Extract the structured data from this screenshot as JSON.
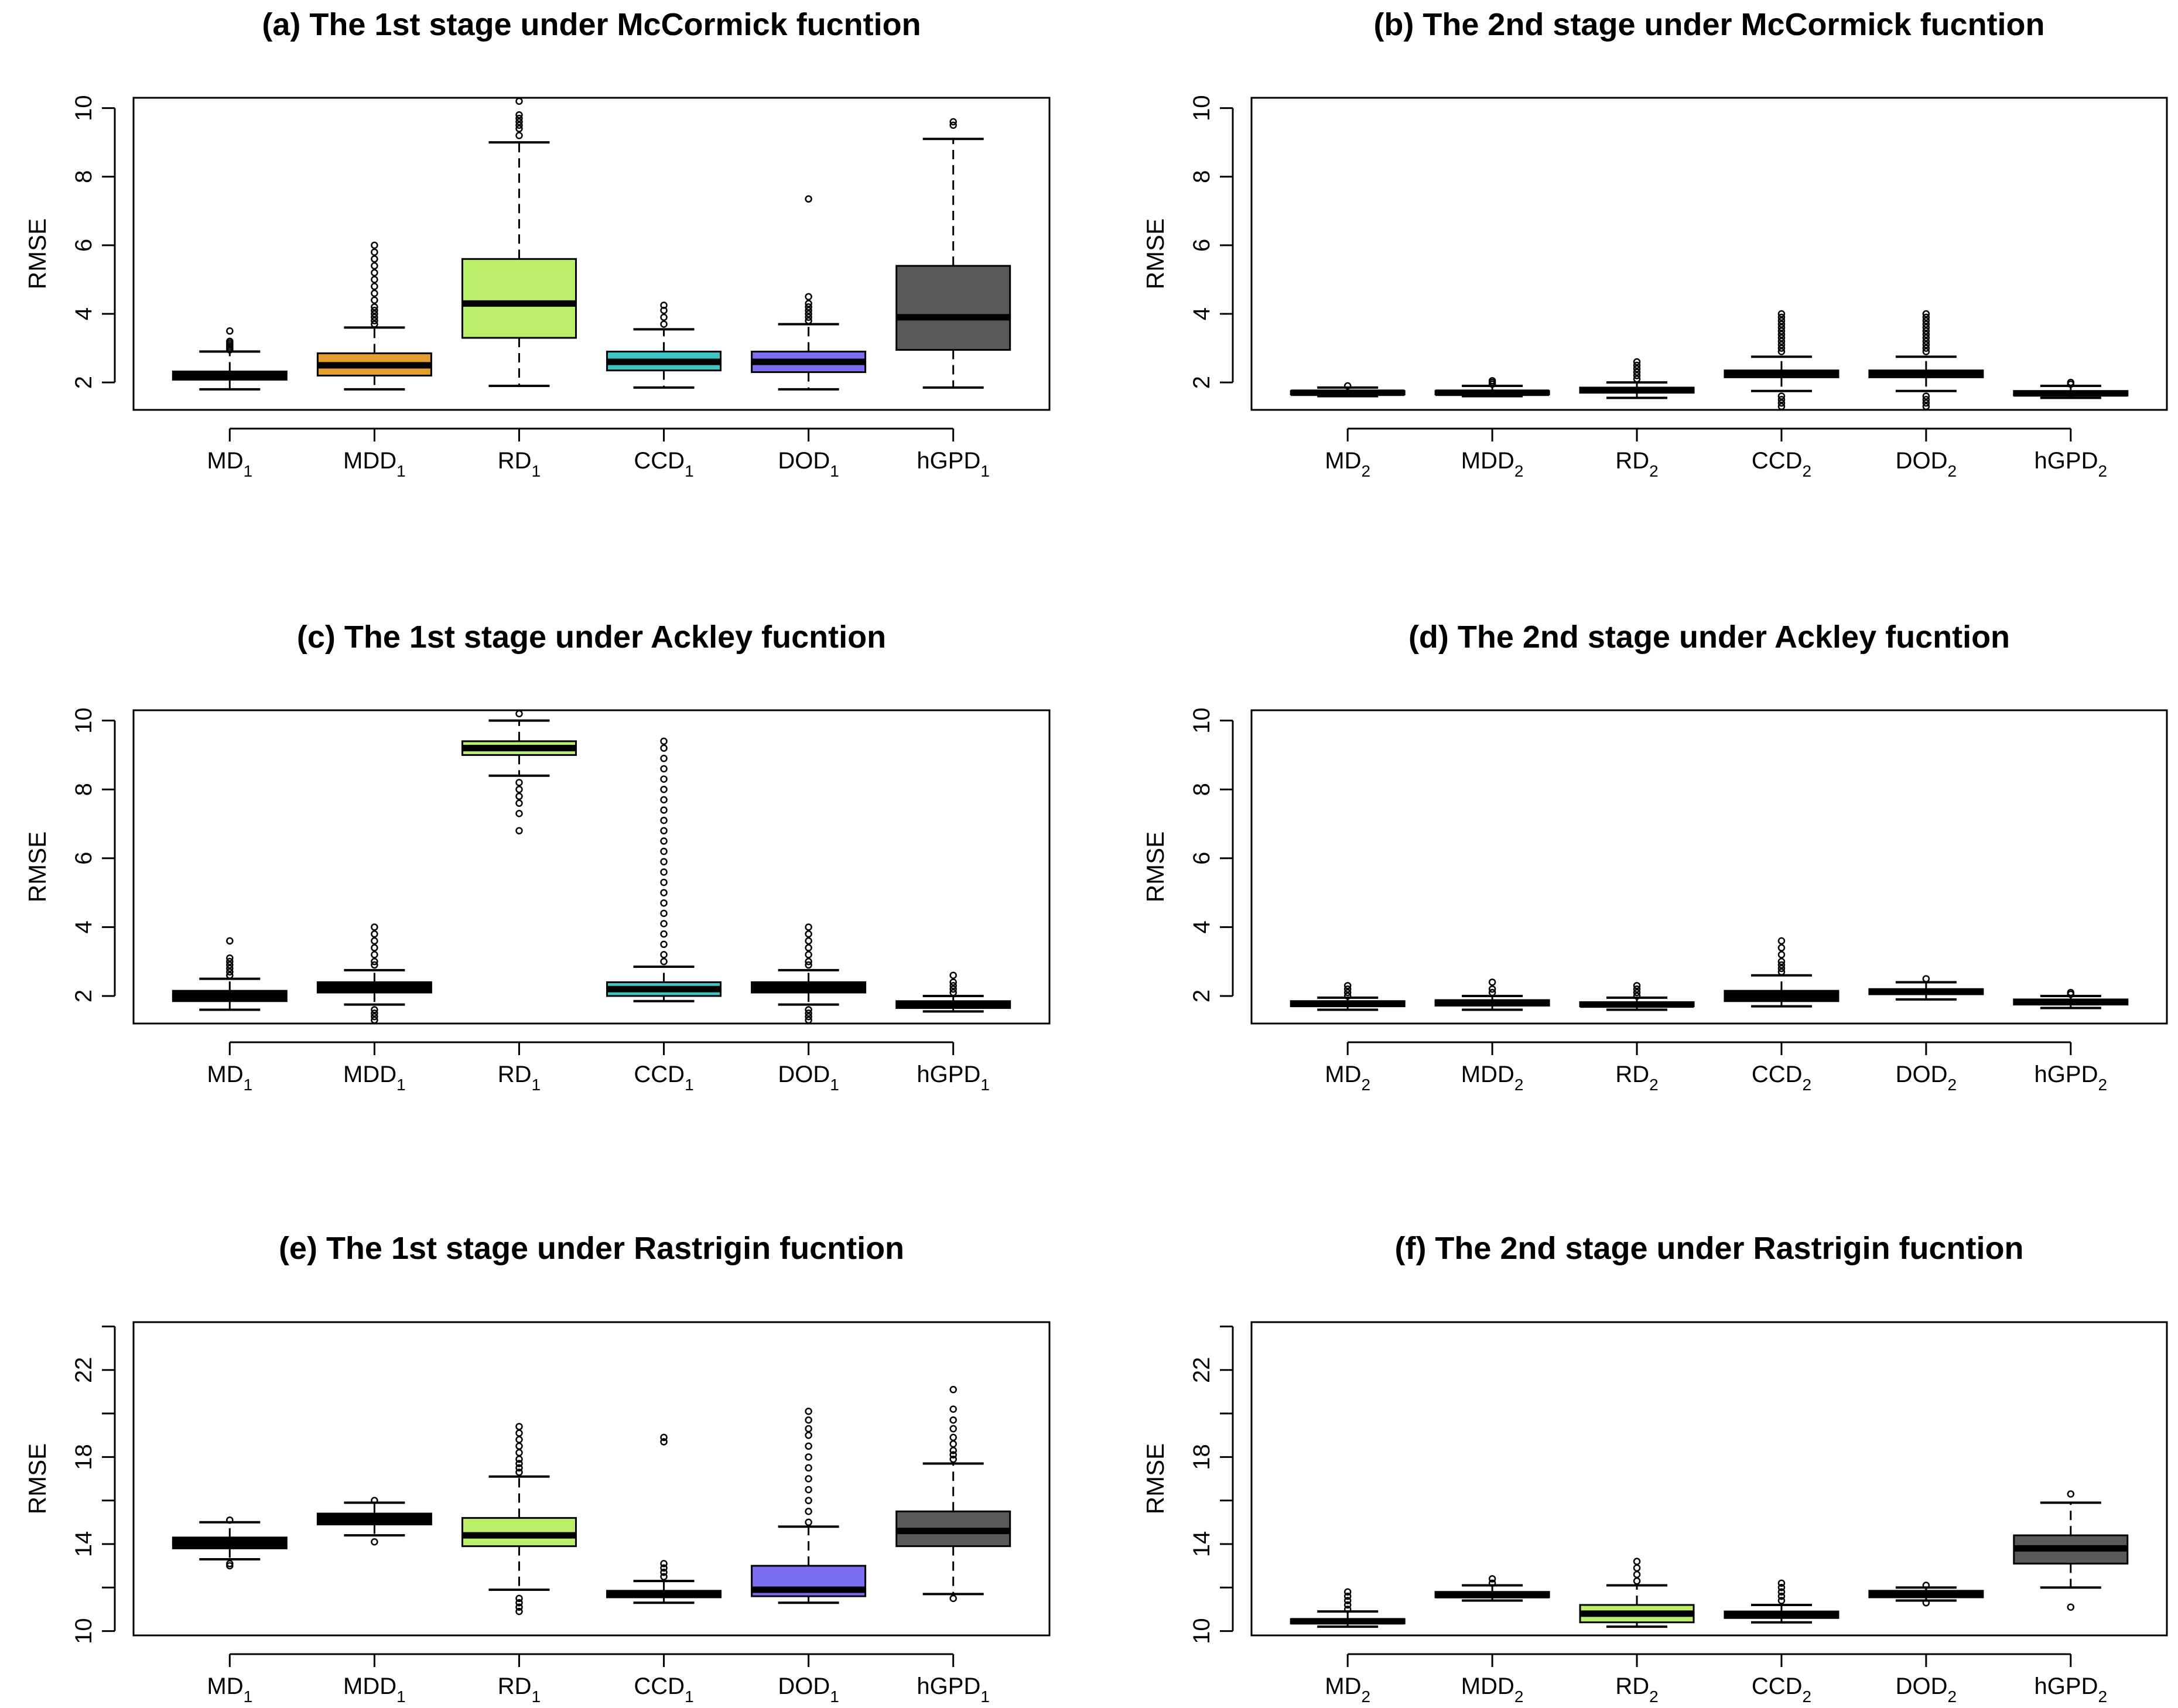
{
  "chart_data": [
    {
      "type": "box",
      "title": "(a) The 1st stage under McCormick fucntion",
      "ylabel": "RMSE",
      "ylim": [
        1.2,
        10.3
      ],
      "yticks": [
        2,
        4,
        6,
        8,
        10
      ],
      "series": [
        {
          "name": "MD",
          "sub": "1",
          "color": "#000000",
          "min": 1.8,
          "q1": 2.08,
          "median": 2.2,
          "q3": 2.32,
          "max": 2.9,
          "outliers": [
            2.95,
            3.0,
            3.05,
            3.1,
            3.15,
            3.2,
            3.5
          ]
        },
        {
          "name": "MDD",
          "sub": "1",
          "color": "#E69F2F",
          "min": 1.8,
          "q1": 2.2,
          "median": 2.5,
          "q3": 2.85,
          "max": 3.6,
          "outliers": [
            3.7,
            3.8,
            3.9,
            4.0,
            4.1,
            4.2,
            4.4,
            4.6,
            4.8,
            5.0,
            5.2,
            5.4,
            5.6,
            5.8,
            6.0
          ]
        },
        {
          "name": "RD",
          "sub": "1",
          "color": "#BDF06A",
          "min": 1.9,
          "q1": 3.3,
          "median": 4.3,
          "q3": 5.6,
          "max": 9.0,
          "outliers": [
            9.2,
            9.4,
            9.5,
            9.6,
            9.7,
            9.8,
            10.2
          ]
        },
        {
          "name": "CCD",
          "sub": "1",
          "color": "#3EC6C6",
          "min": 1.85,
          "q1": 2.35,
          "median": 2.6,
          "q3": 2.9,
          "max": 3.55,
          "outliers": [
            3.7,
            3.9,
            4.1,
            4.25
          ]
        },
        {
          "name": "DOD",
          "sub": "1",
          "color": "#7B6EF0",
          "min": 1.8,
          "q1": 2.3,
          "median": 2.6,
          "q3": 2.9,
          "max": 3.7,
          "outliers": [
            3.8,
            3.9,
            4.0,
            4.1,
            4.2,
            4.3,
            4.5,
            7.35
          ]
        },
        {
          "name": "hGPD",
          "sub": "1",
          "color": "#595959",
          "min": 1.85,
          "q1": 2.95,
          "median": 3.9,
          "q3": 5.4,
          "max": 9.1,
          "outliers": [
            9.5,
            9.6
          ]
        }
      ]
    },
    {
      "type": "box",
      "title": "(b) The 2nd stage under McCormick fucntion",
      "ylabel": "RMSE",
      "ylim": [
        1.2,
        10.3
      ],
      "yticks": [
        2,
        4,
        6,
        8,
        10
      ],
      "series": [
        {
          "name": "MD",
          "sub": "2",
          "color": "#000000",
          "min": 1.6,
          "q1": 1.65,
          "median": 1.7,
          "q3": 1.75,
          "max": 1.85,
          "outliers": [
            1.9
          ]
        },
        {
          "name": "MDD",
          "sub": "2",
          "color": "#000000",
          "min": 1.6,
          "q1": 1.65,
          "median": 1.7,
          "q3": 1.75,
          "max": 1.9,
          "outliers": [
            1.95,
            2.0,
            2.05
          ]
        },
        {
          "name": "RD",
          "sub": "2",
          "color": "#000000",
          "min": 1.55,
          "q1": 1.7,
          "median": 1.78,
          "q3": 1.85,
          "max": 2.0,
          "outliers": [
            2.1,
            2.2,
            2.3,
            2.4,
            2.5,
            2.6
          ]
        },
        {
          "name": "CCD",
          "sub": "2",
          "color": "#000000",
          "min": 1.75,
          "q1": 2.15,
          "median": 2.25,
          "q3": 2.35,
          "max": 2.75,
          "outliers": [
            1.3,
            1.4,
            1.5,
            1.6,
            2.9,
            3.0,
            3.1,
            3.2,
            3.3,
            3.4,
            3.5,
            3.6,
            3.7,
            3.8,
            3.9,
            4.0
          ]
        },
        {
          "name": "DOD",
          "sub": "2",
          "color": "#000000",
          "min": 1.75,
          "q1": 2.15,
          "median": 2.25,
          "q3": 2.35,
          "max": 2.75,
          "outliers": [
            1.3,
            1.4,
            1.5,
            1.6,
            2.9,
            3.0,
            3.1,
            3.2,
            3.3,
            3.4,
            3.5,
            3.6,
            3.7,
            3.8,
            3.9,
            4.0
          ]
        },
        {
          "name": "hGPD",
          "sub": "2",
          "color": "#000000",
          "min": 1.55,
          "q1": 1.62,
          "median": 1.68,
          "q3": 1.75,
          "max": 1.9,
          "outliers": [
            1.95,
            2.0
          ]
        }
      ]
    },
    {
      "type": "box",
      "title": "(c) The 1st stage under Ackley fucntion",
      "ylabel": "RMSE",
      "ylim": [
        1.2,
        10.3
      ],
      "yticks": [
        2,
        4,
        6,
        8,
        10
      ],
      "series": [
        {
          "name": "MD",
          "sub": "1",
          "color": "#000000",
          "min": 1.6,
          "q1": 1.85,
          "median": 2.0,
          "q3": 2.15,
          "max": 2.5,
          "outliers": [
            2.6,
            2.7,
            2.8,
            2.9,
            3.0,
            3.1,
            3.6
          ]
        },
        {
          "name": "MDD",
          "sub": "1",
          "color": "#000000",
          "min": 1.75,
          "q1": 2.1,
          "median": 2.25,
          "q3": 2.4,
          "max": 2.75,
          "outliers": [
            1.3,
            1.4,
            1.5,
            1.6,
            2.9,
            3.0,
            3.2,
            3.4,
            3.6,
            3.8,
            4.0
          ]
        },
        {
          "name": "RD",
          "sub": "1",
          "color": "#BDF06A",
          "min": 8.4,
          "q1": 9.0,
          "median": 9.2,
          "q3": 9.4,
          "max": 10.0,
          "outliers": [
            6.8,
            7.3,
            7.6,
            7.8,
            8.0,
            8.2,
            10.2
          ]
        },
        {
          "name": "CCD",
          "sub": "1",
          "color": "#3EC6C6",
          "min": 1.85,
          "q1": 2.0,
          "median": 2.2,
          "q3": 2.4,
          "max": 2.85,
          "outliers": [
            3.0,
            3.2,
            3.5,
            3.8,
            4.1,
            4.4,
            4.7,
            5.0,
            5.3,
            5.6,
            5.9,
            6.2,
            6.5,
            6.8,
            7.1,
            7.4,
            7.7,
            8.0,
            8.3,
            8.6,
            8.9,
            9.2,
            9.4
          ]
        },
        {
          "name": "DOD",
          "sub": "1",
          "color": "#000000",
          "min": 1.75,
          "q1": 2.1,
          "median": 2.25,
          "q3": 2.4,
          "max": 2.75,
          "outliers": [
            1.3,
            1.4,
            1.5,
            1.6,
            2.9,
            3.0,
            3.2,
            3.4,
            3.6,
            3.8,
            4.0
          ]
        },
        {
          "name": "hGPD",
          "sub": "1",
          "color": "#000000",
          "min": 1.55,
          "q1": 1.65,
          "median": 1.75,
          "q3": 1.85,
          "max": 2.0,
          "outliers": [
            2.1,
            2.2,
            2.3,
            2.4,
            2.6
          ]
        }
      ]
    },
    {
      "type": "box",
      "title": "(d) The 2nd stage under Ackley fucntion",
      "ylabel": "RMSE",
      "ylim": [
        1.2,
        10.3
      ],
      "yticks": [
        2,
        4,
        6,
        8,
        10
      ],
      "series": [
        {
          "name": "MD",
          "sub": "2",
          "color": "#000000",
          "min": 1.6,
          "q1": 1.7,
          "median": 1.78,
          "q3": 1.85,
          "max": 1.95,
          "outliers": [
            2.0,
            2.1,
            2.2,
            2.3
          ]
        },
        {
          "name": "MDD",
          "sub": "2",
          "color": "#000000",
          "min": 1.6,
          "q1": 1.72,
          "median": 1.8,
          "q3": 1.88,
          "max": 2.0,
          "outliers": [
            2.1,
            2.2,
            2.4
          ]
        },
        {
          "name": "RD",
          "sub": "2",
          "color": "#000000",
          "min": 1.6,
          "q1": 1.7,
          "median": 1.75,
          "q3": 1.82,
          "max": 1.95,
          "outliers": [
            2.0,
            2.1,
            2.2,
            2.3
          ]
        },
        {
          "name": "CCD",
          "sub": "2",
          "color": "#000000",
          "min": 1.7,
          "q1": 1.85,
          "median": 1.95,
          "q3": 2.15,
          "max": 2.6,
          "outliers": [
            2.7,
            2.8,
            2.9,
            3.0,
            3.2,
            3.4,
            3.6
          ]
        },
        {
          "name": "DOD",
          "sub": "2",
          "color": "#000000",
          "min": 1.9,
          "q1": 2.05,
          "median": 2.12,
          "q3": 2.2,
          "max": 2.4,
          "outliers": [
            2.5
          ]
        },
        {
          "name": "hGPD",
          "sub": "2",
          "color": "#000000",
          "min": 1.65,
          "q1": 1.75,
          "median": 1.82,
          "q3": 1.9,
          "max": 2.0,
          "outliers": [
            2.05,
            2.1
          ]
        }
      ]
    },
    {
      "type": "box",
      "title": "(e) The 1st stage under Rastrigin fucntion",
      "ylabel": "RMSE",
      "ylim": [
        9.8,
        24.2
      ],
      "yticks": [
        10,
        14,
        18,
        22
      ],
      "minorTicks": [
        12,
        16,
        20,
        24
      ],
      "series": [
        {
          "name": "MD",
          "sub": "1",
          "color": "#000000",
          "min": 13.3,
          "q1": 13.8,
          "median": 14.05,
          "q3": 14.3,
          "max": 15.0,
          "outliers": [
            13.0,
            13.1,
            15.1
          ]
        },
        {
          "name": "MDD",
          "sub": "1",
          "color": "#000000",
          "min": 14.4,
          "q1": 14.9,
          "median": 15.15,
          "q3": 15.4,
          "max": 15.9,
          "outliers": [
            14.1,
            16.0
          ]
        },
        {
          "name": "RD",
          "sub": "1",
          "color": "#BDF06A",
          "min": 11.9,
          "q1": 13.9,
          "median": 14.4,
          "q3": 15.2,
          "max": 17.1,
          "outliers": [
            10.9,
            11.1,
            11.3,
            11.5,
            17.3,
            17.5,
            17.7,
            17.9,
            18.2,
            18.5,
            18.8,
            19.1,
            19.4
          ]
        },
        {
          "name": "CCD",
          "sub": "1",
          "color": "#000000",
          "min": 11.3,
          "q1": 11.55,
          "median": 11.7,
          "q3": 11.85,
          "max": 12.3,
          "outliers": [
            12.5,
            12.7,
            12.9,
            13.1,
            18.7,
            18.9
          ]
        },
        {
          "name": "DOD",
          "sub": "1",
          "color": "#7B6EF0",
          "min": 11.3,
          "q1": 11.6,
          "median": 11.9,
          "q3": 13.0,
          "max": 14.8,
          "outliers": [
            15.0,
            15.5,
            16.0,
            16.5,
            17.0,
            17.5,
            18.0,
            18.5,
            19.0,
            19.3,
            19.7,
            20.1
          ]
        },
        {
          "name": "hGPD",
          "sub": "1",
          "color": "#595959",
          "min": 11.7,
          "q1": 13.9,
          "median": 14.6,
          "q3": 15.5,
          "max": 17.7,
          "outliers": [
            11.5,
            17.9,
            18.1,
            18.3,
            18.6,
            18.9,
            19.3,
            19.7,
            20.2,
            21.1
          ]
        }
      ]
    },
    {
      "type": "box",
      "title": "(f) The 2nd stage under Rastrigin fucntion",
      "ylabel": "RMSE",
      "ylim": [
        9.8,
        24.2
      ],
      "yticks": [
        10,
        14,
        18,
        22
      ],
      "minorTicks": [
        12,
        16,
        20,
        24
      ],
      "series": [
        {
          "name": "MD",
          "sub": "2",
          "color": "#000000",
          "min": 10.2,
          "q1": 10.35,
          "median": 10.45,
          "q3": 10.55,
          "max": 10.9,
          "outliers": [
            11.0,
            11.2,
            11.4,
            11.6,
            11.8
          ]
        },
        {
          "name": "MDD",
          "sub": "2",
          "color": "#000000",
          "min": 11.4,
          "q1": 11.55,
          "median": 11.65,
          "q3": 11.8,
          "max": 12.1,
          "outliers": [
            12.2,
            12.4
          ]
        },
        {
          "name": "RD",
          "sub": "2",
          "color": "#BDF06A",
          "min": 10.2,
          "q1": 10.4,
          "median": 10.8,
          "q3": 11.2,
          "max": 12.1,
          "outliers": [
            12.3,
            12.6,
            12.9,
            13.2
          ]
        },
        {
          "name": "CCD",
          "sub": "2",
          "color": "#000000",
          "min": 10.4,
          "q1": 10.6,
          "median": 10.75,
          "q3": 10.9,
          "max": 11.2,
          "outliers": [
            11.4,
            11.6,
            11.8,
            12.0,
            12.2
          ]
        },
        {
          "name": "DOD",
          "sub": "2",
          "color": "#000000",
          "min": 11.4,
          "q1": 11.55,
          "median": 11.7,
          "q3": 11.85,
          "max": 12.0,
          "outliers": [
            11.3,
            12.1
          ]
        },
        {
          "name": "hGPD",
          "sub": "2",
          "color": "#595959",
          "min": 12.0,
          "q1": 13.1,
          "median": 13.8,
          "q3": 14.4,
          "max": 15.9,
          "outliers": [
            11.1,
            16.3
          ]
        }
      ]
    }
  ]
}
